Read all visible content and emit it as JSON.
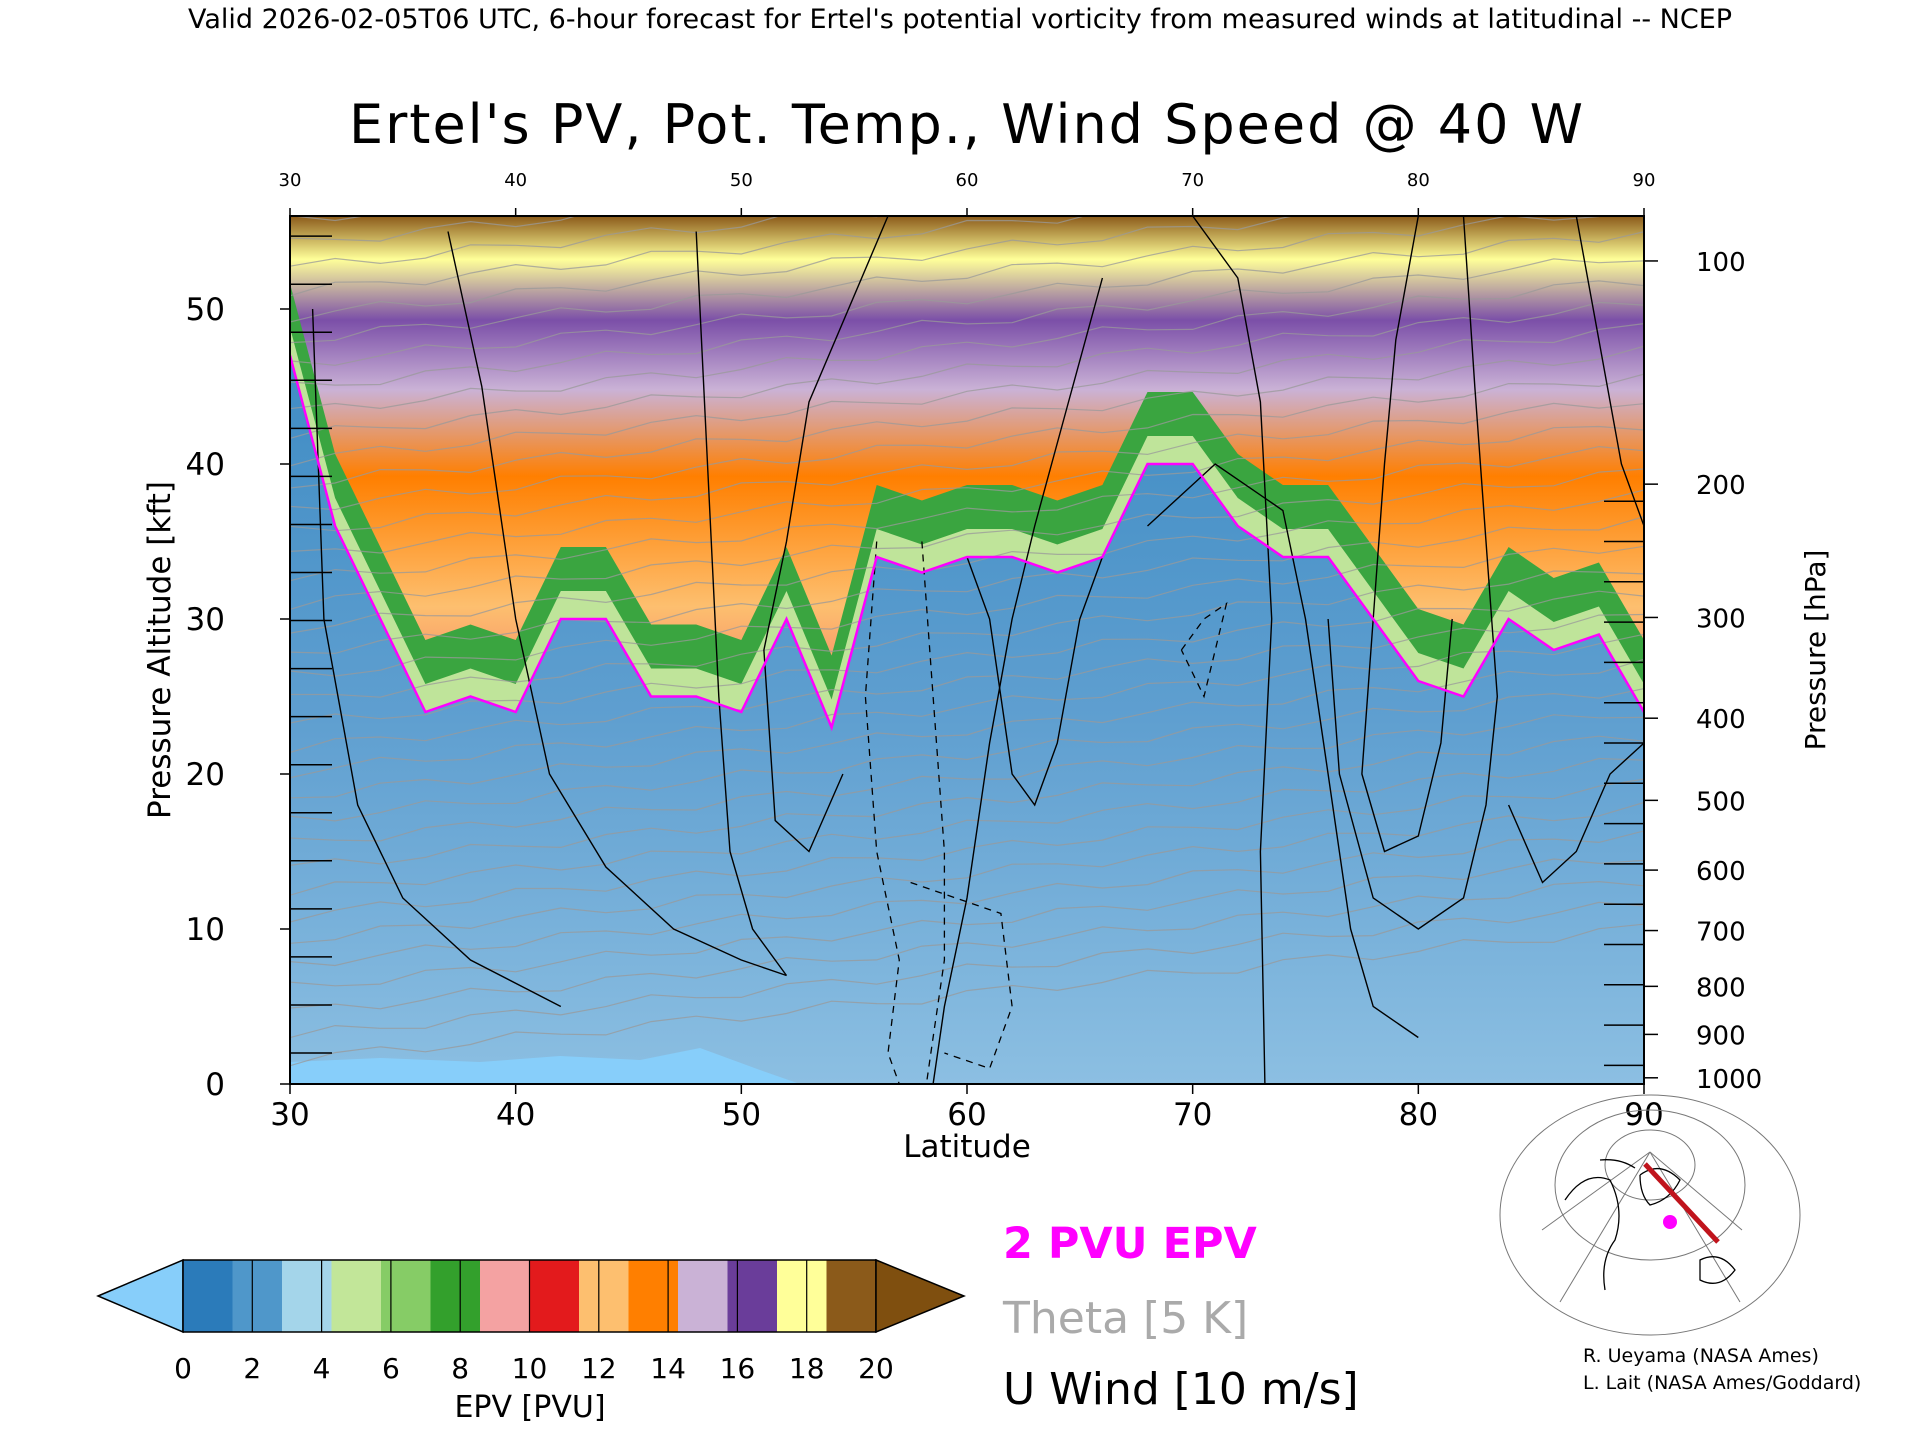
{
  "header": {
    "banner": "Valid 2026-02-05T06 UTC, 6-hour forecast for Ertel's potential vorticity from measured winds at latitudinal -- NCEP"
  },
  "chart_data": {
    "type": "heatmap",
    "title": "Ertel's PV, Pot. Temp., Wind Speed @ 40 W",
    "xlabel": "Latitude",
    "ylabel": "Pressure Altitude [kft]",
    "y2label": "Pressure [hPa]",
    "xlim": [
      30,
      90
    ],
    "ylim": [
      0,
      56
    ],
    "x_ticks": [
      "30",
      "40",
      "50",
      "60",
      "70",
      "80",
      "90"
    ],
    "y_ticks": [
      "0",
      "10",
      "20",
      "30",
      "40",
      "50"
    ],
    "pressure_ticks": [
      {
        "hPa": "100",
        "kft": 53.1
      },
      {
        "hPa": "200",
        "kft": 38.7
      },
      {
        "hPa": "300",
        "kft": 30.1
      },
      {
        "hPa": "400",
        "kft": 23.6
      },
      {
        "hPa": "500",
        "kft": 18.3
      },
      {
        "hPa": "600",
        "kft": 13.8
      },
      {
        "hPa": "700",
        "kft": 9.9
      },
      {
        "hPa": "800",
        "kft": 6.3
      },
      {
        "hPa": "900",
        "kft": 3.2
      },
      {
        "hPa": "1000",
        "kft": 0.4
      }
    ],
    "series": [
      {
        "name": "2 PVU EPV",
        "color": "#ff00ff",
        "x": [
          30,
          32,
          34,
          36,
          38,
          40,
          42,
          44,
          46,
          48,
          50,
          52,
          54,
          56,
          58,
          60,
          62,
          64,
          66,
          68,
          70,
          72,
          74,
          76,
          78,
          80,
          82,
          84,
          86,
          88,
          90
        ],
        "y": [
          47,
          36,
          30,
          24,
          25,
          24,
          30,
          30,
          25,
          25,
          24,
          30,
          23,
          34,
          33,
          34,
          34,
          33,
          34,
          40,
          40,
          36,
          34,
          34,
          30,
          26,
          25,
          30,
          28,
          29,
          24
        ]
      },
      {
        "name": "Theta [5 K]",
        "color": "#aaaaaa"
      },
      {
        "name": "U Wind [10 m/s]",
        "color": "#000000"
      }
    ],
    "colorbar": {
      "label": "EPV [PVU]",
      "tick_labels": [
        "0",
        "2",
        "4",
        "6",
        "8",
        "10",
        "12",
        "14",
        "16",
        "18",
        "20"
      ],
      "colors": [
        "#2b7bba",
        "#4f97ca",
        "#a4d5ea",
        "#c2e699",
        "#86cc66",
        "#33a02c",
        "#f4a2a2",
        "#e31a1c",
        "#fdbf6f",
        "#ff7f00",
        "#cab2d6",
        "#6a3d9a",
        "#ffff99",
        "#8b5a1a"
      ],
      "under_color": "#87cefa",
      "over_color": "#7f4f0f"
    }
  },
  "legend_text": {
    "pv": "2 PVU EPV",
    "theta": "Theta [5 K]",
    "wind": "U Wind [10 m/s]"
  },
  "credits": {
    "line1": "R. Ueyama (NASA Ames)",
    "line2": "L. Lait (NASA Ames/Goddard)"
  }
}
